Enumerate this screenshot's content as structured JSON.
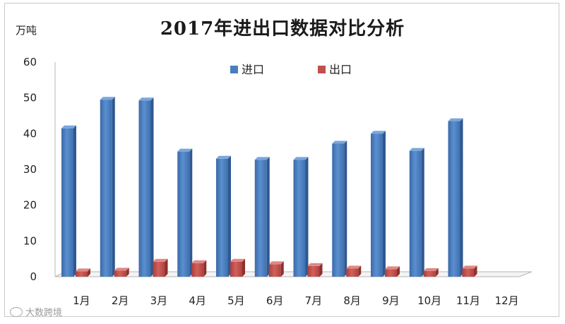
{
  "chart_data": {
    "type": "bar",
    "title": "2017年进出口数据对比分析",
    "ylabel": "万吨",
    "xlabel": "",
    "ylim": [
      0,
      60
    ],
    "yticks": [
      0,
      10,
      20,
      30,
      40,
      50,
      60
    ],
    "categories": [
      "1月",
      "2月",
      "3月",
      "4月",
      "5月",
      "6月",
      "7月",
      "8月",
      "9月",
      "10月",
      "11月",
      "12月"
    ],
    "series": [
      {
        "name": "进口",
        "color": "#4a7ebb",
        "values": [
          41.5,
          49.5,
          49.3,
          35.0,
          33.0,
          32.7,
          32.7,
          37.2,
          40.0,
          35.2,
          43.5,
          null
        ]
      },
      {
        "name": "出口",
        "color": "#c0504d",
        "values": [
          1.5,
          1.7,
          4.2,
          3.8,
          4.2,
          3.5,
          3.0,
          2.3,
          2.1,
          1.6,
          2.3,
          null
        ]
      }
    ],
    "legend": "top",
    "grid": false
  },
  "watermark": {
    "text": "大数跨境"
  }
}
